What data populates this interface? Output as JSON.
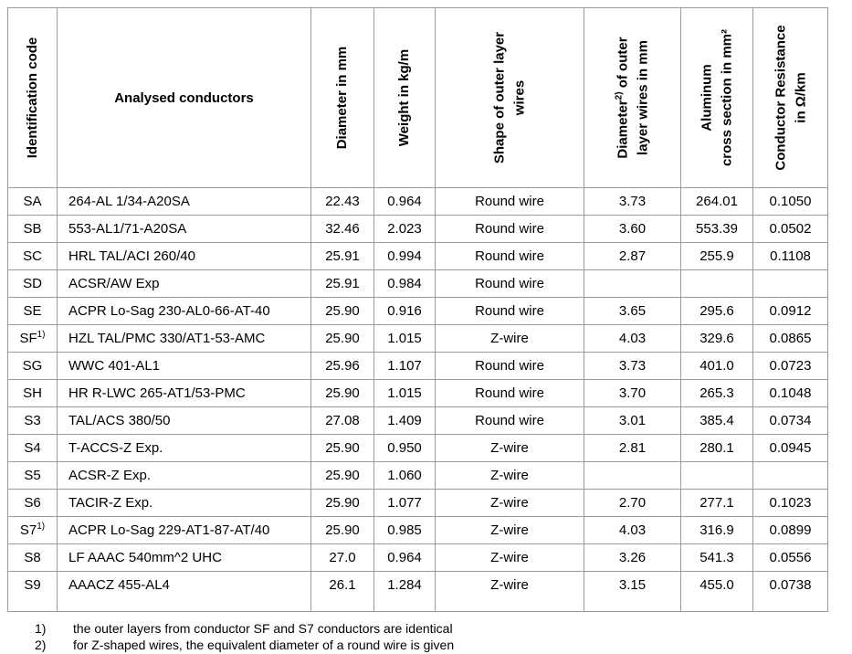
{
  "table": {
    "headers": {
      "id": "Identification code",
      "conductors": "Analysed conductors",
      "diameter": "Diameter in mm",
      "weight": "Weight in kg/m",
      "shape": "Shape of outer layer\nwires",
      "wire_diameter_base": "Diameter",
      "wire_diameter_sup": "2)",
      "wire_diameter_rest": " of outer\nlayer wires in mm",
      "aluminum": "Aluminum\ncross section in mm²",
      "resistance": "Conductor Resistance\nin Ω/km"
    },
    "rows": [
      {
        "code": "SA",
        "code_sup": "",
        "name": "264-AL 1/34-A20SA",
        "diameter": "22.43",
        "weight": "0.964",
        "shape": "Round wire",
        "wire_diameter": "3.73",
        "cross_section": "264.01",
        "resistance": "0.1050"
      },
      {
        "code": "SB",
        "code_sup": "",
        "name": "553-AL1/71-A20SA",
        "diameter": "32.46",
        "weight": "2.023",
        "shape": "Round wire",
        "wire_diameter": "3.60",
        "cross_section": "553.39",
        "resistance": "0.0502"
      },
      {
        "code": "SC",
        "code_sup": "",
        "name": "HRL TAL/ACI 260/40",
        "diameter": "25.91",
        "weight": "0.994",
        "shape": "Round wire",
        "wire_diameter": "2.87",
        "cross_section": "255.9",
        "resistance": "0.1108"
      },
      {
        "code": "SD",
        "code_sup": "",
        "name": "ACSR/AW Exp",
        "diameter": "25.91",
        "weight": "0.984",
        "shape": "Round wire",
        "wire_diameter": "",
        "cross_section": "",
        "resistance": ""
      },
      {
        "code": "SE",
        "code_sup": "",
        "name": "ACPR Lo-Sag 230-AL0-66-AT-40",
        "diameter": "25.90",
        "weight": "0.916",
        "shape": "Round wire",
        "wire_diameter": "3.65",
        "cross_section": "295.6",
        "resistance": "0.0912"
      },
      {
        "code": "SF",
        "code_sup": "1)",
        "name": "HZL TAL/PMC 330/AT1-53-AMC",
        "diameter": "25.90",
        "weight": "1.015",
        "shape": "Z-wire",
        "wire_diameter": "4.03",
        "cross_section": "329.6",
        "resistance": "0.0865"
      },
      {
        "code": "SG",
        "code_sup": "",
        "name": "WWC 401-AL1",
        "diameter": "25.96",
        "weight": "1.107",
        "shape": "Round wire",
        "wire_diameter": "3.73",
        "cross_section": "401.0",
        "resistance": "0.0723"
      },
      {
        "code": "SH",
        "code_sup": "",
        "name": "HR R-LWC 265-AT1/53-PMC",
        "diameter": "25.90",
        "weight": "1.015",
        "shape": "Round wire",
        "wire_diameter": "3.70",
        "cross_section": "265.3",
        "resistance": "0.1048"
      },
      {
        "code": "S3",
        "code_sup": "",
        "name": "TAL/ACS 380/50",
        "diameter": "27.08",
        "weight": "1.409",
        "shape": "Round wire",
        "wire_diameter": "3.01",
        "cross_section": "385.4",
        "resistance": "0.0734"
      },
      {
        "code": "S4",
        "code_sup": "",
        "name": "T-ACCS-Z Exp.",
        "diameter": "25.90",
        "weight": "0.950",
        "shape": "Z-wire",
        "wire_diameter": "2.81",
        "cross_section": "280.1",
        "resistance": "0.0945"
      },
      {
        "code": "S5",
        "code_sup": "",
        "name": "ACSR-Z Exp.",
        "diameter": "25.90",
        "weight": "1.060",
        "shape": "Z-wire",
        "wire_diameter": "",
        "cross_section": "",
        "resistance": ""
      },
      {
        "code": "S6",
        "code_sup": "",
        "name": "TACIR-Z Exp.",
        "diameter": "25.90",
        "weight": "1.077",
        "shape": "Z-wire",
        "wire_diameter": "2.70",
        "cross_section": "277.1",
        "resistance": "0.1023"
      },
      {
        "code": "S7",
        "code_sup": "1)",
        "name": "ACPR Lo-Sag 229-AT1-87-AT/40",
        "diameter": "25.90",
        "weight": "0.985",
        "shape": "Z-wire",
        "wire_diameter": "4.03",
        "cross_section": "316.9",
        "resistance": "0.0899"
      },
      {
        "code": "S8",
        "code_sup": "",
        "name": "LF AAAC 540mm^2 UHC",
        "diameter": "27.0",
        "weight": "0.964",
        "shape": "Z-wire",
        "wire_diameter": "3.26",
        "cross_section": "541.3",
        "resistance": "0.0556"
      },
      {
        "code": "S9",
        "code_sup": "",
        "name": "AAACZ 455-AL4",
        "diameter": "26.1",
        "weight": "1.284",
        "shape": "Z-wire",
        "wire_diameter": "3.15",
        "cross_section": "455.0",
        "resistance": "0.0738"
      }
    ]
  },
  "footnotes": [
    {
      "label": "1)",
      "text": "the outer layers from conductor SF and S7 conductors are identical"
    },
    {
      "label": "2)",
      "text": "for Z-shaped wires, the equivalent diameter of a round wire is given"
    }
  ]
}
